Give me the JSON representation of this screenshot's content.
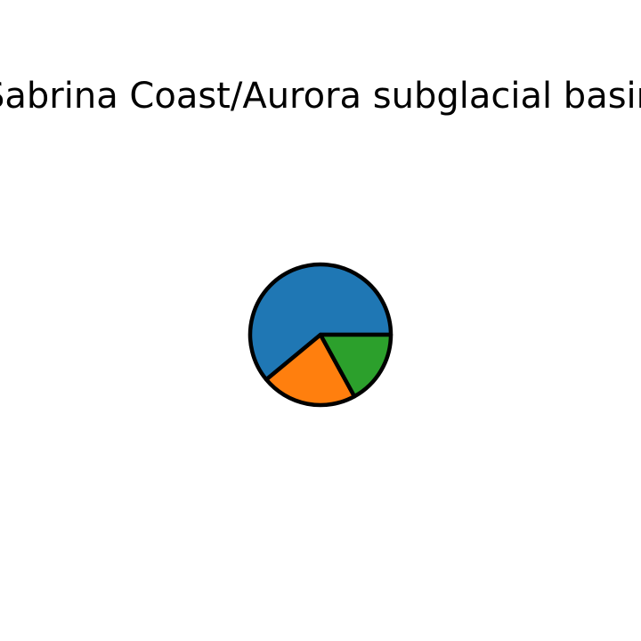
{
  "chart_data": {
    "type": "pie",
    "title": "Sabrina Coast/Aurora subglacial basin",
    "slices": [
      {
        "value": 61,
        "color": "#1f77b4"
      },
      {
        "value": 22,
        "color": "#ff7f0e"
      },
      {
        "value": 17,
        "color": "#2ca02c"
      }
    ],
    "start_angle_deg": 0,
    "direction": "counterclockwise",
    "legend": "none",
    "slice_labels": "none"
  }
}
